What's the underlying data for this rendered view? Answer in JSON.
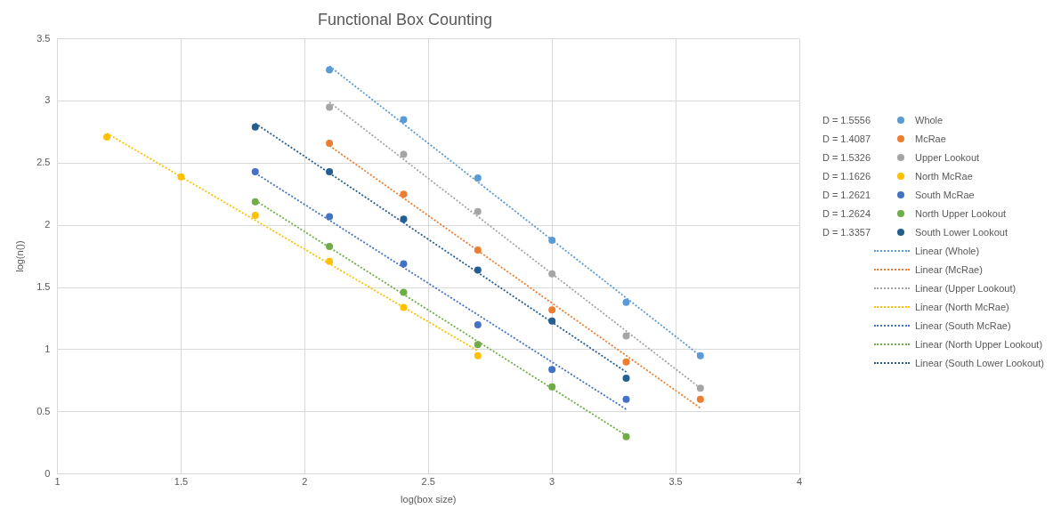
{
  "chart_data": {
    "type": "scatter",
    "title": "Functional Box Counting",
    "xlabel": "log(box size)",
    "ylabel": "log(n())",
    "xlim": [
      1,
      4
    ],
    "xticks": [
      1,
      1.5,
      2,
      2.5,
      3,
      3.5,
      4
    ],
    "ylim": [
      0,
      3.5
    ],
    "yticks": [
      0,
      0.5,
      1,
      1.5,
      2,
      2.5,
      3,
      3.5
    ],
    "grid": true,
    "legend": "right",
    "marker": "circle",
    "annotations": [
      "D = 1.5556",
      "D = 1.4087",
      "D = 1.5326",
      "D = 1.1626",
      "D = 1.2621",
      "D = 1.2624",
      "D = 1.3357"
    ],
    "series": [
      {
        "name": "Whole",
        "color": "#5b9bd5",
        "x": [
          2.1,
          2.4,
          2.7,
          3.0,
          3.3,
          3.6
        ],
        "values": [
          3.25,
          2.85,
          2.38,
          1.88,
          1.38,
          0.95
        ]
      },
      {
        "name": "McRae",
        "color": "#ed7d31",
        "x": [
          2.1,
          2.4,
          2.7,
          3.0,
          3.3,
          3.6
        ],
        "values": [
          2.66,
          2.25,
          1.8,
          1.32,
          0.9,
          0.6
        ]
      },
      {
        "name": "Upper Lookout",
        "color": "#a5a5a5",
        "x": [
          2.1,
          2.4,
          2.7,
          3.0,
          3.3,
          3.6
        ],
        "values": [
          2.95,
          2.57,
          2.11,
          1.61,
          1.11,
          0.69
        ]
      },
      {
        "name": "North McRae",
        "color": "#ffc000",
        "x": [
          1.2,
          1.5,
          1.8,
          2.1,
          2.4,
          2.7
        ],
        "values": [
          2.71,
          2.39,
          2.08,
          1.71,
          1.34,
          0.95
        ]
      },
      {
        "name": "South McRae",
        "color": "#4472c4",
        "x": [
          1.8,
          2.1,
          2.4,
          2.7,
          3.0,
          3.3
        ],
        "values": [
          2.43,
          2.07,
          1.69,
          1.2,
          0.84,
          0.6
        ]
      },
      {
        "name": "North Upper Lookout",
        "color": "#70ad47",
        "x": [
          1.8,
          2.1,
          2.4,
          2.7,
          3.0,
          3.3
        ],
        "values": [
          2.19,
          1.83,
          1.46,
          1.04,
          0.7,
          0.3
        ]
      },
      {
        "name": "South Lower Lookout",
        "color": "#255e91",
        "x": [
          1.8,
          2.1,
          2.4,
          2.7,
          3.0,
          3.3
        ],
        "values": [
          2.79,
          2.43,
          2.05,
          1.64,
          1.23,
          0.77
        ]
      },
      {
        "name": "Linear (Whole)",
        "type": "line",
        "line_style": "dotted",
        "marker": "none",
        "color": "#5b9bd5",
        "x": [
          2.1,
          3.6
        ],
        "values": [
          3.28,
          0.95
        ]
      },
      {
        "name": "Linear (McRae)",
        "type": "line",
        "line_style": "dotted",
        "marker": "none",
        "color": "#ed7d31",
        "x": [
          2.1,
          3.6
        ],
        "values": [
          2.64,
          0.53
        ]
      },
      {
        "name": "Linear (Upper Lookout)",
        "type": "line",
        "line_style": "dotted",
        "marker": "none",
        "color": "#a5a5a5",
        "x": [
          2.1,
          3.6
        ],
        "values": [
          2.99,
          0.69
        ]
      },
      {
        "name": "Linear (North McRae)",
        "type": "line",
        "line_style": "dotted",
        "marker": "none",
        "color": "#ffc000",
        "x": [
          1.2,
          2.7
        ],
        "values": [
          2.74,
          0.99
        ]
      },
      {
        "name": "Linear (South McRae)",
        "type": "line",
        "line_style": "dotted",
        "marker": "none",
        "color": "#4472c4",
        "x": [
          1.8,
          3.3
        ],
        "values": [
          2.42,
          0.52
        ]
      },
      {
        "name": "Linear (North Upper Lookout)",
        "type": "line",
        "line_style": "dotted",
        "marker": "none",
        "color": "#70ad47",
        "x": [
          1.8,
          3.3
        ],
        "values": [
          2.2,
          0.31
        ]
      },
      {
        "name": "Linear (South Lower Lookout)",
        "type": "line",
        "line_style": "dotted",
        "marker": "none",
        "color": "#255e91",
        "x": [
          1.8,
          3.3
        ],
        "values": [
          2.82,
          0.82
        ]
      }
    ]
  }
}
